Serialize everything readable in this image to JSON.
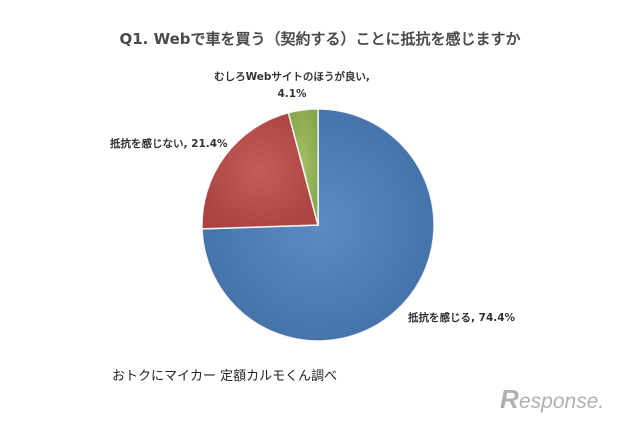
{
  "chart_data": {
    "type": "pie",
    "title": "Q1. Webで車を買う（契約する）ことに抵抗を感じますか",
    "slices": [
      {
        "name": "抵抗を感じる",
        "value": 74.4,
        "label": "抵抗を感じる, 74.4%",
        "color": "#4a7ebb"
      },
      {
        "name": "抵抗を感じない",
        "value": 21.4,
        "label": "抵抗を感じない, 21.4%",
        "color": "#be4b48"
      },
      {
        "name": "むしろWebサイトのほうが良い",
        "value": 4.1,
        "label_line1": "むしろWebサイトのほうが良い,",
        "label_line2": "4.1%",
        "color": "#98b954"
      }
    ]
  },
  "source_note": "おトクにマイカー 定額カルモくん調べ",
  "watermark": {
    "letter": "R",
    "text": "esponse.",
    "color": "#b0b0b0"
  }
}
